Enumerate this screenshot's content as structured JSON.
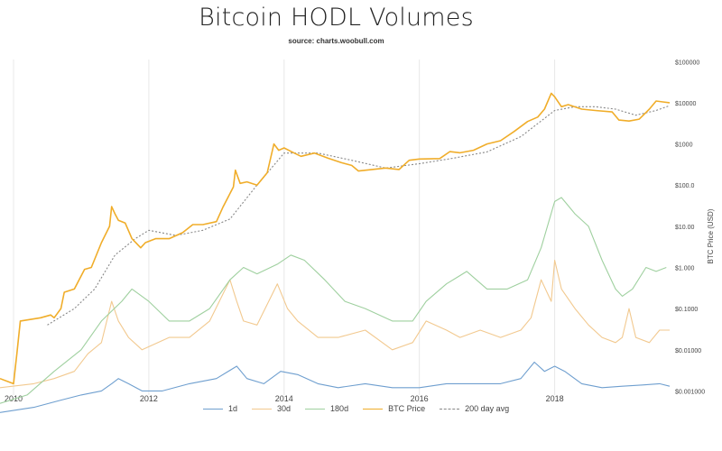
{
  "title": "Bitcoin HODL Volumes",
  "subtitle": "source: charts.woobull.com",
  "colors": {
    "1d": "#6f9fcf",
    "30d": "#f2c98f",
    "180d": "#9fd09f",
    "btc_price": "#f0ad2a",
    "ma200": "#888888",
    "grid": "#e8e8e8",
    "axis_text": "#444444"
  },
  "legend": [
    {
      "label": "1d",
      "key": "1d",
      "style": "solid"
    },
    {
      "label": "30d",
      "key": "30d",
      "style": "solid"
    },
    {
      "label": "180d",
      "key": "180d",
      "style": "solid"
    },
    {
      "label": "BTC Price",
      "key": "btc_price",
      "style": "solid"
    },
    {
      "label": "200 day avg",
      "key": "ma200",
      "style": "dashed"
    }
  ],
  "chart_data": {
    "type": "line",
    "title": "Bitcoin HODL Volumes",
    "subtitle": "source: charts.woobull.com",
    "xlabel": "",
    "ylabel_right": "BTC Price (USD)",
    "xlim": [
      2009.8,
      2019.7
    ],
    "ylim_log10": [
      -3.1,
      5.05
    ],
    "y_scale": "log",
    "grid": "vertical",
    "legend_position": "bottom",
    "x_ticks": [
      {
        "value": 2010,
        "label": "2010"
      },
      {
        "value": 2012,
        "label": "2012"
      },
      {
        "value": 2014,
        "label": "2014"
      },
      {
        "value": 2016,
        "label": "2016"
      },
      {
        "value": 2018,
        "label": "2018"
      }
    ],
    "y_ticks": [
      {
        "value": 0.001,
        "label": "$0.001000"
      },
      {
        "value": 0.01,
        "label": "$0.01000"
      },
      {
        "value": 0.1,
        "label": "$0.1000"
      },
      {
        "value": 1,
        "label": "$1.000"
      },
      {
        "value": 10,
        "label": "$10.00"
      },
      {
        "value": 100,
        "label": "$100.0"
      },
      {
        "value": 1000,
        "label": "$1000"
      },
      {
        "value": 10000,
        "label": "$10000"
      },
      {
        "value": 100000,
        "label": "$100000"
      }
    ],
    "series": [
      {
        "name": "BTC Price",
        "key": "btc_price",
        "x": [
          2009.8,
          2010.0,
          2010.05,
          2010.1,
          2010.4,
          2010.55,
          2010.6,
          2010.7,
          2010.75,
          2010.9,
          2011.05,
          2011.15,
          2011.3,
          2011.42,
          2011.45,
          2011.5,
          2011.55,
          2011.65,
          2011.75,
          2011.88,
          2011.95,
          2012.1,
          2012.3,
          2012.5,
          2012.65,
          2012.8,
          2013.0,
          2013.1,
          2013.25,
          2013.28,
          2013.35,
          2013.45,
          2013.6,
          2013.75,
          2013.85,
          2013.92,
          2014.0,
          2014.15,
          2014.25,
          2014.45,
          2014.65,
          2014.85,
          2015.0,
          2015.1,
          2015.3,
          2015.5,
          2015.7,
          2015.85,
          2016.0,
          2016.3,
          2016.45,
          2016.6,
          2016.8,
          2017.0,
          2017.2,
          2017.4,
          2017.6,
          2017.75,
          2017.85,
          2017.95,
          2018.0,
          2018.1,
          2018.2,
          2018.4,
          2018.6,
          2018.85,
          2018.95,
          2019.1,
          2019.25,
          2019.4,
          2019.5,
          2019.6,
          2019.7
        ],
        "y": [
          0.002,
          0.0015,
          0.008,
          0.05,
          0.06,
          0.07,
          0.06,
          0.1,
          0.25,
          0.3,
          0.9,
          1.0,
          4,
          10,
          30,
          20,
          14,
          12,
          5,
          3,
          4,
          5,
          5,
          7,
          11,
          11,
          13,
          30,
          90,
          230,
          110,
          120,
          100,
          200,
          1000,
          700,
          800,
          600,
          500,
          600,
          450,
          350,
          300,
          220,
          240,
          260,
          240,
          400,
          430,
          440,
          650,
          610,
          700,
          1000,
          1200,
          2000,
          3500,
          4500,
          7000,
          17000,
          14000,
          8000,
          9000,
          7000,
          6500,
          6000,
          3800,
          3600,
          4000,
          7000,
          11000,
          10500,
          10000
        ]
      },
      {
        "name": "200 day avg",
        "key": "ma200",
        "x": [
          2010.5,
          2010.9,
          2011.2,
          2011.5,
          2011.8,
          2012.0,
          2012.4,
          2012.8,
          2013.2,
          2013.6,
          2014.0,
          2014.5,
          2015.0,
          2015.5,
          2016.0,
          2016.5,
          2017.0,
          2017.5,
          2018.0,
          2018.3,
          2018.6,
          2018.9,
          2019.2,
          2019.5,
          2019.7
        ],
        "y": [
          0.04,
          0.1,
          0.3,
          2,
          5,
          8,
          6,
          8,
          15,
          100,
          600,
          600,
          400,
          260,
          330,
          450,
          640,
          1500,
          6500,
          8000,
          8000,
          7000,
          5000,
          6500,
          8500
        ]
      },
      {
        "name": "180d",
        "key": "180d",
        "x": [
          2009.8,
          2010.2,
          2010.6,
          2011.0,
          2011.3,
          2011.6,
          2011.75,
          2012.0,
          2012.3,
          2012.6,
          2012.9,
          2013.2,
          2013.4,
          2013.6,
          2013.9,
          2014.1,
          2014.3,
          2014.6,
          2014.9,
          2015.2,
          2015.6,
          2015.9,
          2016.1,
          2016.4,
          2016.7,
          2017.0,
          2017.3,
          2017.6,
          2017.8,
          2018.0,
          2018.1,
          2018.3,
          2018.5,
          2018.7,
          2018.9,
          2019.0,
          2019.15,
          2019.35,
          2019.5,
          2019.65
        ],
        "y": [
          0.0005,
          0.0008,
          0.003,
          0.01,
          0.05,
          0.15,
          0.3,
          0.15,
          0.05,
          0.05,
          0.1,
          0.5,
          1,
          0.7,
          1.2,
          2,
          1.5,
          0.5,
          0.15,
          0.1,
          0.05,
          0.05,
          0.15,
          0.4,
          0.8,
          0.3,
          0.3,
          0.5,
          3,
          40,
          50,
          20,
          10,
          1.5,
          0.3,
          0.2,
          0.3,
          1,
          0.8,
          1
        ]
      },
      {
        "name": "30d",
        "key": "30d",
        "x": [
          2009.8,
          2010.3,
          2010.6,
          2010.9,
          2011.1,
          2011.3,
          2011.45,
          2011.55,
          2011.7,
          2011.9,
          2012.3,
          2012.6,
          2012.9,
          2013.2,
          2013.3,
          2013.4,
          2013.6,
          2013.9,
          2014.05,
          2014.2,
          2014.5,
          2014.8,
          2015.2,
          2015.6,
          2015.9,
          2016.1,
          2016.4,
          2016.6,
          2016.9,
          2017.2,
          2017.5,
          2017.65,
          2017.8,
          2017.95,
          2018.0,
          2018.1,
          2018.3,
          2018.5,
          2018.7,
          2018.9,
          2019.0,
          2019.1,
          2019.2,
          2019.4,
          2019.55,
          2019.7
        ],
        "y": [
          0.0012,
          0.0015,
          0.002,
          0.003,
          0.008,
          0.015,
          0.15,
          0.05,
          0.02,
          0.01,
          0.02,
          0.02,
          0.05,
          0.5,
          0.15,
          0.05,
          0.04,
          0.4,
          0.1,
          0.05,
          0.02,
          0.02,
          0.03,
          0.01,
          0.015,
          0.05,
          0.03,
          0.02,
          0.03,
          0.02,
          0.03,
          0.06,
          0.5,
          0.15,
          1.5,
          0.3,
          0.1,
          0.04,
          0.02,
          0.015,
          0.02,
          0.1,
          0.02,
          0.015,
          0.03,
          0.03
        ]
      },
      {
        "name": "1d",
        "key": "1d",
        "x": [
          2009.8,
          2010.3,
          2010.7,
          2011.0,
          2011.3,
          2011.45,
          2011.55,
          2011.7,
          2011.9,
          2012.2,
          2012.6,
          2013.0,
          2013.3,
          2013.45,
          2013.7,
          2013.95,
          2014.2,
          2014.5,
          2014.8,
          2015.2,
          2015.6,
          2016.0,
          2016.4,
          2016.8,
          2017.2,
          2017.5,
          2017.7,
          2017.85,
          2018.0,
          2018.15,
          2018.4,
          2018.7,
          2019.0,
          2019.3,
          2019.55,
          2019.7
        ],
        "y": [
          0.0003,
          0.0004,
          0.0006,
          0.0008,
          0.001,
          0.0015,
          0.002,
          0.0015,
          0.001,
          0.001,
          0.0015,
          0.002,
          0.004,
          0.002,
          0.0015,
          0.003,
          0.0025,
          0.0015,
          0.0012,
          0.0015,
          0.0012,
          0.0012,
          0.0015,
          0.0015,
          0.0015,
          0.002,
          0.005,
          0.003,
          0.004,
          0.003,
          0.0015,
          0.0012,
          0.0013,
          0.0014,
          0.0015,
          0.0013
        ]
      }
    ]
  }
}
